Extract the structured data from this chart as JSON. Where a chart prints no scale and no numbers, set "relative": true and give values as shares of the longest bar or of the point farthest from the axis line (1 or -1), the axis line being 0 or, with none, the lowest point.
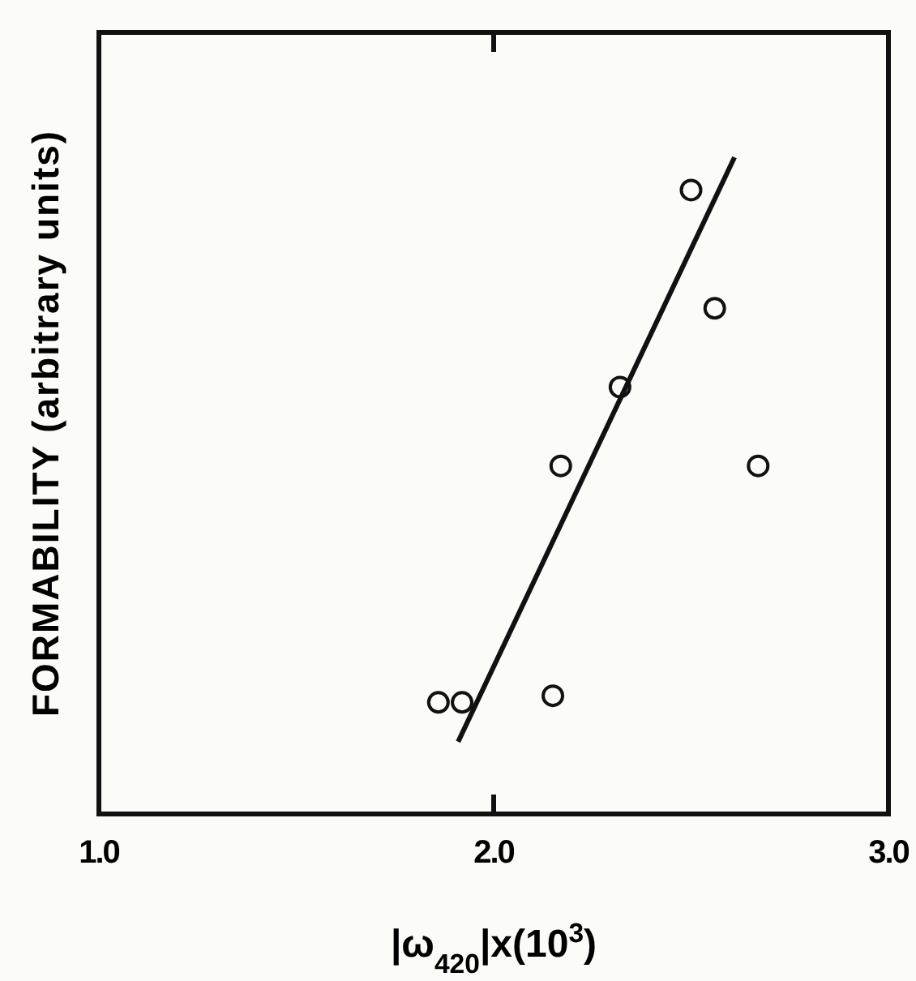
{
  "chart_data": {
    "type": "scatter",
    "relative": true,
    "xlabel": "|ω$_{420}$|x(10$^{3}$)",
    "ylabel": "FORMABILITY (arbitrary units)",
    "xlim": [
      1,
      3
    ],
    "xticks": [
      {
        "value": 1,
        "label": "1.0"
      },
      {
        "value": 2,
        "label": "2.0"
      },
      {
        "value": 3,
        "label": "3.0"
      }
    ],
    "grid": false,
    "marker": "circle",
    "series": [
      {
        "color": "#111111",
        "x": [
          1.86,
          1.92,
          2.15,
          2.17,
          2.32,
          2.5,
          2.56,
          2.67
        ],
        "values": [
          0.17,
          0.17,
          0.18,
          0.53,
          0.65,
          0.95,
          0.77,
          0.53
        ]
      },
      {
        "type": "line",
        "color": "#111111",
        "marker": "none",
        "line_style": "solid",
        "x": [
          1.91,
          2.61
        ],
        "values": [
          0.11,
          1
        ]
      }
    ]
  }
}
